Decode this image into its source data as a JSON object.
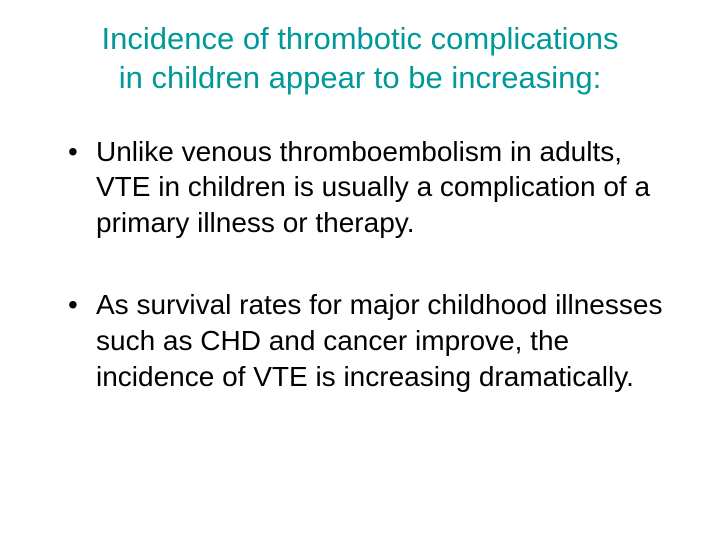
{
  "title": {
    "line1": "Incidence of thrombotic complications",
    "line2": "in children appear to be increasing:",
    "color": "#009999",
    "fontsize": 31,
    "fontweight": "400"
  },
  "bullets": [
    "Unlike venous thromboembolism in adults, VTE in children is usually a complication of a primary illness or therapy.",
    "As survival rates for major childhood illnesses such as CHD and cancer improve, the incidence of VTE is increasing dramatically."
  ],
  "body": {
    "color": "#000000",
    "fontsize": 28,
    "fontweight": "400"
  },
  "background_color": "#ffffff"
}
